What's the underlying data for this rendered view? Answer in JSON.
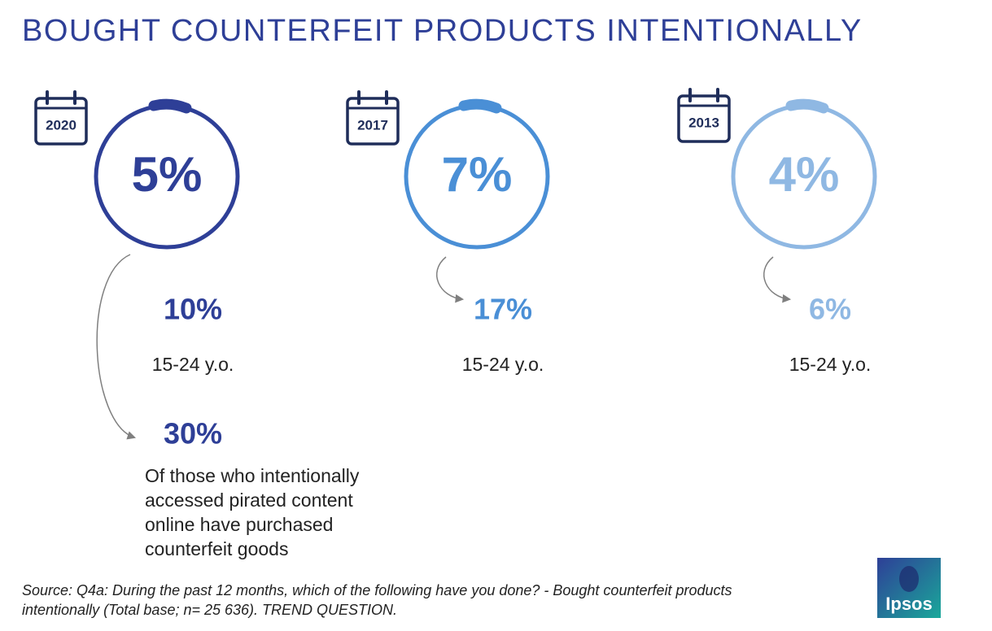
{
  "title": "BOUGHT COUNTERFEIT PRODUCTS INTENTIONALLY",
  "panels": [
    {
      "year": "2020",
      "total": "5%",
      "youth": "10%",
      "youth_label": "15-24 y.o.",
      "color": "#2e3f97",
      "extra": "30%",
      "extra_lines": [
        "Of those who intentionally",
        "accessed pirated content",
        "online have purchased",
        "counterfeit goods"
      ]
    },
    {
      "year": "2017",
      "total": "7%",
      "youth": "17%",
      "youth_label": "15-24 y.o.",
      "color": "#4a8fd6"
    },
    {
      "year": "2013",
      "total": "4%",
      "youth": "6%",
      "youth_label": "15-24 y.o.",
      "color": "#8fb8e3"
    }
  ],
  "source_lines": [
    "Source: Q4a: During the past 12 months, which of the following have you done? - Bought counterfeit products",
    "intentionally (Total base; n= 25 636). TREND QUESTION."
  ],
  "logo": "Ipsos"
}
